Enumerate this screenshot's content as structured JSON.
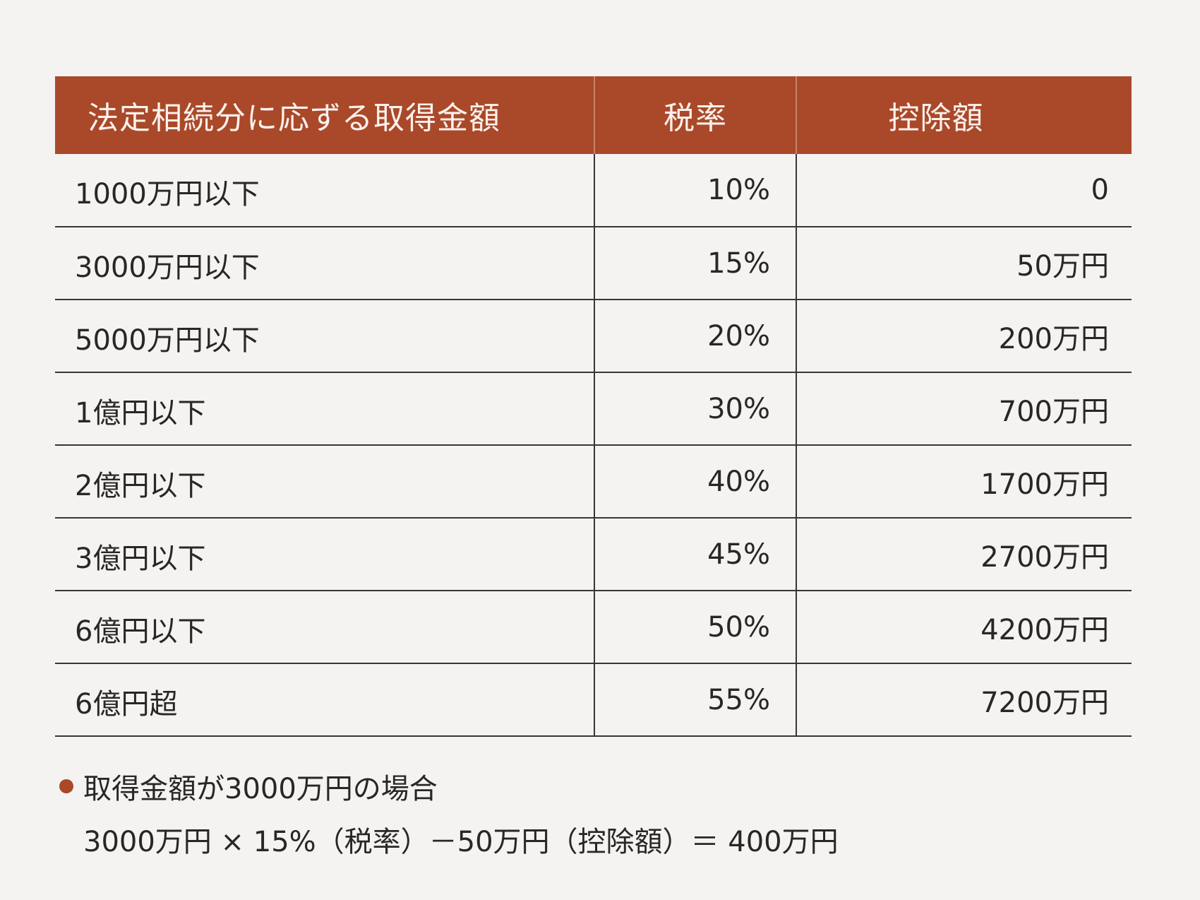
{
  "table": {
    "headers": [
      "法定相続分に応ずる取得金額",
      "税率",
      "控除額"
    ],
    "rows": [
      {
        "amount": "1000万円以下",
        "rate": "10%",
        "deduction": "0"
      },
      {
        "amount": "3000万円以下",
        "rate": "15%",
        "deduction": "50万円"
      },
      {
        "amount": "5000万円以下",
        "rate": "20%",
        "deduction": "200万円"
      },
      {
        "amount": "1億円以下",
        "rate": "30%",
        "deduction": "700万円"
      },
      {
        "amount": "2億円以下",
        "rate": "40%",
        "deduction": "1700万円"
      },
      {
        "amount": "3億円以下",
        "rate": "45%",
        "deduction": "2700万円"
      },
      {
        "amount": "6億円以下",
        "rate": "50%",
        "deduction": "4200万円"
      },
      {
        "amount": "6億円超",
        "rate": "55%",
        "deduction": "7200万円"
      }
    ]
  },
  "example": {
    "title": "取得金額が3000万円の場合",
    "formula": "3000万円 × 15%（税率）－50万円（控除額）＝ 400万円"
  },
  "colors": {
    "header_bg": "#a9492a",
    "header_text": "#fbf1ec",
    "bullet": "#a9492a"
  }
}
